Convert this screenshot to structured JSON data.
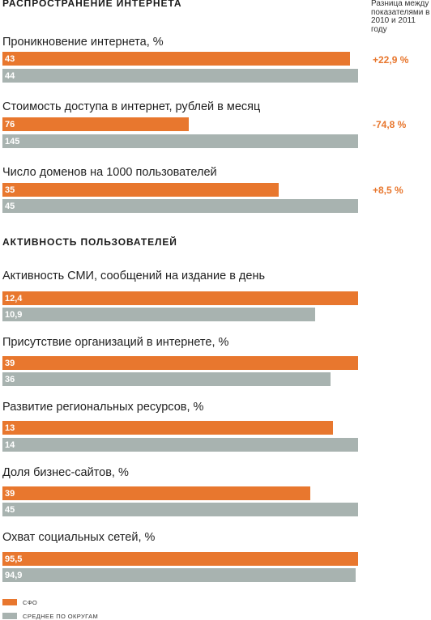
{
  "header": {
    "section1_title": "Распространение интернета",
    "section2_title": "Активность пользователей",
    "diff_header": "Разница между показателями в 2010 и 2011 году"
  },
  "colors": {
    "sfo": "#e8772e",
    "average": "#a8b3b0",
    "diff_text": "#e8772e"
  },
  "legend": {
    "sfo": "СФО",
    "average": "Среднее по округам"
  },
  "chart_data": {
    "type": "bar",
    "orientation": "horizontal",
    "series_names": [
      "СФО",
      "Среднее по округам"
    ],
    "sections": [
      {
        "title": "Распространение интернета",
        "metrics": [
          {
            "title": "Проникновение интернета, %",
            "sfo_label": "43",
            "avg_label": "44",
            "sfo": 43,
            "avg": 44,
            "diff": "+22,9 %"
          },
          {
            "title": "Стоимость доступа в интернет, рублей в месяц",
            "sfo_label": "76",
            "avg_label": "145",
            "sfo": 76,
            "avg": 145,
            "diff": "-74,8 %"
          },
          {
            "title": "Число доменов на 1000 пользователей",
            "sfo_label": "35",
            "avg_label": "45",
            "sfo": 35,
            "avg": 45,
            "diff": "+8,5 %"
          }
        ]
      },
      {
        "title": "Активность пользователей",
        "metrics": [
          {
            "title": "Активность СМИ, сообщений на издание в день",
            "sfo_label": "12,4",
            "avg_label": "10,9",
            "sfo": 12.4,
            "avg": 10.9
          },
          {
            "title": "Присутствие организаций в интернете, %",
            "sfo_label": "39",
            "avg_label": "36",
            "sfo": 39,
            "avg": 36
          },
          {
            "title": "Развитие региональных ресурсов, %",
            "sfo_label": "13",
            "avg_label": "14",
            "sfo": 13,
            "avg": 14
          },
          {
            "title": "Доля бизнес-сайтов, %",
            "sfo_label": "39",
            "avg_label": "45",
            "sfo": 39,
            "avg": 45
          },
          {
            "title": "Охват социальных сетей, %",
            "sfo_label": "95,5",
            "avg_label": "94,9",
            "sfo": 95.5,
            "avg": 94.9
          }
        ]
      }
    ]
  }
}
